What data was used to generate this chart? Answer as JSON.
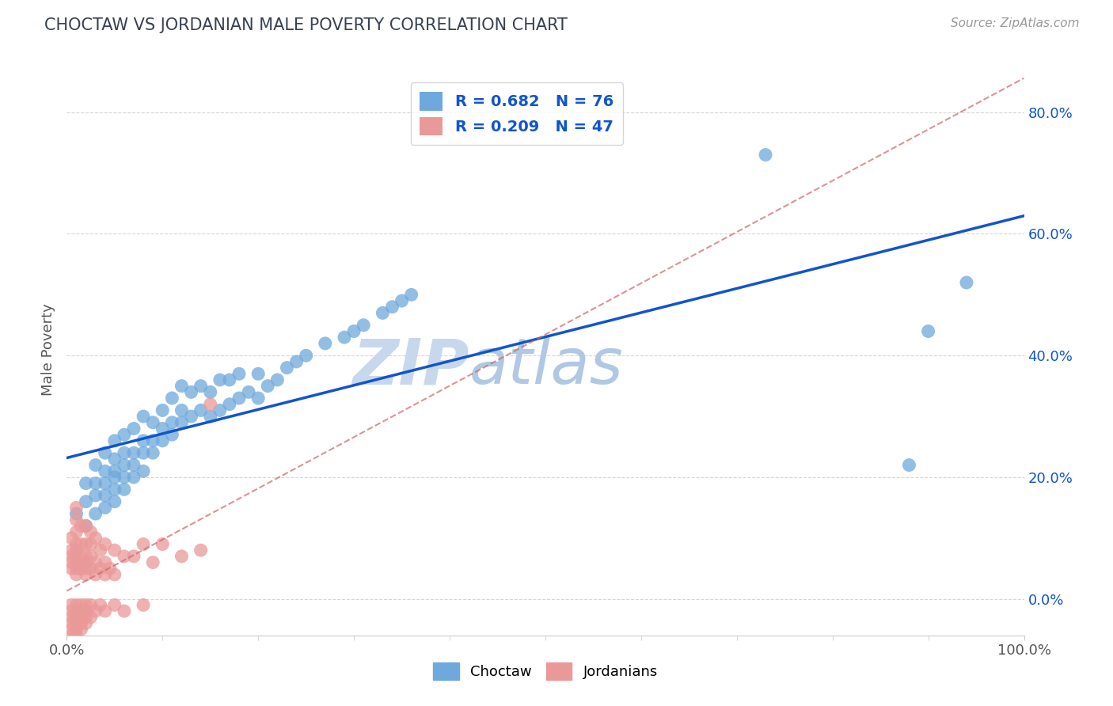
{
  "title": "CHOCTAW VS JORDANIAN MALE POVERTY CORRELATION CHART",
  "source_text": "Source: ZipAtlas.com",
  "ylabel": "Male Poverty",
  "xlim": [
    0.0,
    1.0
  ],
  "ylim": [
    -0.06,
    0.88
  ],
  "ytick_positions": [
    0.0,
    0.2,
    0.4,
    0.6,
    0.8
  ],
  "choctaw_R": 0.682,
  "choctaw_N": 76,
  "jordanian_R": 0.209,
  "jordanian_N": 47,
  "choctaw_color": "#6fa8dc",
  "jordanian_color": "#ea9999",
  "choctaw_line_color": "#1155cc",
  "jordanian_line_color": "#cc6666",
  "grid_color": "#cccccc",
  "background_color": "#ffffff",
  "title_color": "#374151",
  "source_color": "#999999",
  "watermark_color": "#dde8f4",
  "choctaw_x": [
    0.01,
    0.02,
    0.02,
    0.02,
    0.03,
    0.03,
    0.03,
    0.03,
    0.04,
    0.04,
    0.04,
    0.04,
    0.04,
    0.05,
    0.05,
    0.05,
    0.05,
    0.05,
    0.05,
    0.06,
    0.06,
    0.06,
    0.06,
    0.06,
    0.07,
    0.07,
    0.07,
    0.07,
    0.08,
    0.08,
    0.08,
    0.08,
    0.09,
    0.09,
    0.09,
    0.1,
    0.1,
    0.1,
    0.11,
    0.11,
    0.11,
    0.12,
    0.12,
    0.12,
    0.13,
    0.13,
    0.14,
    0.14,
    0.15,
    0.15,
    0.16,
    0.16,
    0.17,
    0.17,
    0.18,
    0.18,
    0.19,
    0.2,
    0.2,
    0.21,
    0.22,
    0.23,
    0.24,
    0.25,
    0.27,
    0.29,
    0.3,
    0.31,
    0.33,
    0.34,
    0.35,
    0.36,
    0.73,
    0.88,
    0.9,
    0.94
  ],
  "choctaw_y": [
    0.14,
    0.12,
    0.16,
    0.19,
    0.14,
    0.17,
    0.19,
    0.22,
    0.15,
    0.17,
    0.19,
    0.21,
    0.24,
    0.16,
    0.18,
    0.2,
    0.21,
    0.23,
    0.26,
    0.18,
    0.2,
    0.22,
    0.24,
    0.27,
    0.2,
    0.22,
    0.24,
    0.28,
    0.21,
    0.24,
    0.26,
    0.3,
    0.24,
    0.26,
    0.29,
    0.26,
    0.28,
    0.31,
    0.27,
    0.29,
    0.33,
    0.29,
    0.31,
    0.35,
    0.3,
    0.34,
    0.31,
    0.35,
    0.3,
    0.34,
    0.31,
    0.36,
    0.32,
    0.36,
    0.33,
    0.37,
    0.34,
    0.33,
    0.37,
    0.35,
    0.36,
    0.38,
    0.39,
    0.4,
    0.42,
    0.43,
    0.44,
    0.45,
    0.47,
    0.48,
    0.49,
    0.5,
    0.73,
    0.22,
    0.44,
    0.52
  ],
  "jordanian_x": [
    0.005,
    0.005,
    0.005,
    0.005,
    0.005,
    0.01,
    0.01,
    0.01,
    0.01,
    0.01,
    0.01,
    0.01,
    0.01,
    0.01,
    0.015,
    0.015,
    0.015,
    0.015,
    0.02,
    0.02,
    0.02,
    0.02,
    0.02,
    0.02,
    0.025,
    0.025,
    0.025,
    0.025,
    0.03,
    0.03,
    0.03,
    0.035,
    0.035,
    0.04,
    0.04,
    0.04,
    0.045,
    0.05,
    0.05,
    0.06,
    0.07,
    0.08,
    0.09,
    0.1,
    0.12,
    0.14,
    0.15
  ],
  "jordanian_y": [
    0.05,
    0.06,
    0.07,
    0.08,
    0.1,
    0.04,
    0.05,
    0.06,
    0.07,
    0.08,
    0.09,
    0.11,
    0.13,
    0.15,
    0.05,
    0.07,
    0.09,
    0.12,
    0.04,
    0.05,
    0.06,
    0.07,
    0.09,
    0.12,
    0.05,
    0.07,
    0.09,
    0.11,
    0.04,
    0.06,
    0.1,
    0.05,
    0.08,
    0.04,
    0.06,
    0.09,
    0.05,
    0.04,
    0.08,
    0.07,
    0.07,
    0.09,
    0.06,
    0.09,
    0.07,
    0.08,
    0.32
  ],
  "jordanian_neg_x": [
    0.005,
    0.005,
    0.005,
    0.005,
    0.005,
    0.005,
    0.01,
    0.01,
    0.01,
    0.01,
    0.01,
    0.01,
    0.01,
    0.015,
    0.015,
    0.015,
    0.015,
    0.015,
    0.02,
    0.02,
    0.02,
    0.02,
    0.025,
    0.025,
    0.03,
    0.035,
    0.04,
    0.05,
    0.06,
    0.08
  ],
  "jordanian_neg_y": [
    -0.01,
    -0.02,
    -0.03,
    -0.04,
    -0.05,
    -0.06,
    -0.01,
    -0.02,
    -0.03,
    -0.04,
    -0.05,
    -0.06,
    -0.07,
    -0.01,
    -0.02,
    -0.03,
    -0.04,
    -0.05,
    -0.01,
    -0.02,
    -0.03,
    -0.04,
    -0.01,
    -0.03,
    -0.02,
    -0.01,
    -0.02,
    -0.01,
    -0.02,
    -0.01
  ]
}
